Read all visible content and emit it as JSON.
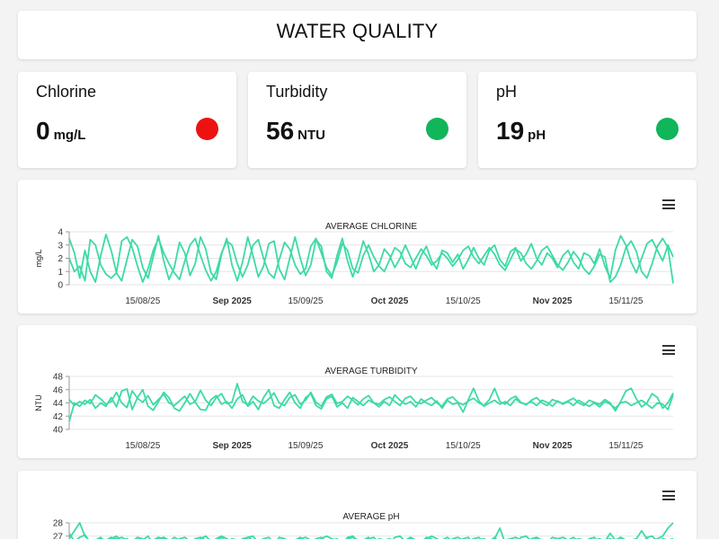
{
  "page": {
    "title": "WATER QUALITY"
  },
  "metrics": [
    {
      "name": "Chlorine",
      "value": "0",
      "unit": "mg/L",
      "status_color": "#ee1111"
    },
    {
      "name": "Turbidity",
      "value": "56",
      "unit": "NTU",
      "status_color": "#11b55a"
    },
    {
      "name": "pH",
      "value": "19",
      "unit": "pH",
      "status_color": "#11b55a"
    }
  ],
  "menu_icon": "hamburger-menu-icon",
  "line_color": "#3ddaa6",
  "chart_data": [
    {
      "type": "line",
      "title": "AVERAGE CHLORINE",
      "ylabel": "mg/L",
      "ylim": [
        0,
        4
      ],
      "yticks": [
        0,
        1,
        2,
        3,
        4
      ],
      "xticks": [
        "15/08/25",
        "Sep 2025",
        "15/09/25",
        "Oct 2025",
        "15/10/25",
        "Nov 2025",
        "15/11/25"
      ],
      "xticks_bold": [
        false,
        true,
        false,
        true,
        false,
        true,
        false
      ],
      "xlim_index": [
        0,
        115
      ],
      "xtick_index": [
        14,
        31,
        45,
        61,
        75,
        92,
        106
      ],
      "series": [
        {
          "values": [
            2.0,
            1.0,
            1.4,
            0.3,
            3.4,
            3.0,
            1.5,
            0.8,
            0.5,
            0.9,
            3.3,
            3.6,
            2.8,
            1.4,
            0.2,
            1.2,
            2.6,
            3.5,
            2.4,
            1.6,
            0.9,
            0.4,
            1.8,
            3.0,
            3.5,
            2.2,
            1.1,
            0.3,
            1.0,
            2.4,
            3.3,
            3.0,
            1.6,
            0.6,
            1.5,
            3.0,
            3.4,
            2.0,
            0.9,
            0.5,
            1.9,
            3.2,
            2.7,
            1.5,
            0.8,
            1.2,
            2.9,
            3.5,
            2.4,
            1.3,
            0.7,
            1.7,
            3.1,
            2.6,
            1.2,
            0.9,
            2.2,
            3.0,
            2.1,
            1.4,
            1.0,
            1.9,
            2.8,
            2.5,
            1.6,
            1.3,
            2.0,
            2.7,
            2.2,
            1.5,
            1.8,
            2.4,
            2.0,
            1.4,
            1.9,
            2.6,
            2.9,
            2.1,
            1.6,
            2.2,
            2.8,
            2.3,
            1.5,
            1.1,
            1.9,
            2.7,
            2.4,
            1.6,
            1.2,
            1.8,
            2.6,
            2.9,
            2.2,
            1.5,
            1.1,
            1.7,
            2.5,
            2.0,
            1.2,
            0.8,
            1.4,
            2.3,
            2.1,
            0.2,
            0.6,
            1.5,
            2.8,
            3.3,
            2.5,
            1.0,
            0.5,
            1.6,
            2.9,
            3.5,
            2.8,
            0.1
          ]
        },
        {
          "values": [
            3.5,
            2.4,
            0.5,
            2.6,
            1.0,
            0.2,
            2.2,
            3.8,
            2.6,
            0.9,
            0.3,
            1.9,
            3.4,
            2.9,
            1.3,
            0.5,
            2.1,
            3.7,
            1.8,
            0.4,
            1.3,
            3.2,
            2.4,
            0.7,
            1.6,
            3.6,
            2.7,
            0.9,
            0.4,
            2.3,
            3.5,
            1.5,
            0.3,
            1.7,
            3.6,
            2.2,
            0.6,
            1.4,
            3.1,
            3.3,
            1.2,
            0.4,
            2.0,
            3.6,
            2.0,
            0.7,
            1.5,
            3.4,
            2.9,
            1.0,
            0.5,
            2.2,
            3.5,
            1.8,
            0.6,
            1.8,
            3.3,
            2.3,
            1.0,
            1.5,
            2.7,
            2.2,
            1.3,
            2.0,
            3.0,
            2.1,
            1.2,
            2.2,
            2.9,
            1.8,
            1.2,
            2.6,
            2.4,
            1.7,
            2.3,
            1.2,
            1.9,
            2.8,
            2.0,
            1.5,
            2.6,
            3.0,
            1.9,
            1.4,
            2.5,
            2.8,
            1.8,
            2.3,
            3.1,
            2.0,
            1.5,
            2.4,
            2.0,
            1.3,
            2.2,
            2.6,
            1.7,
            1.2,
            2.4,
            2.2,
            1.6,
            2.7,
            1.4,
            0.5,
            2.6,
            3.7,
            3.0,
            1.7,
            0.9,
            2.0,
            3.1,
            3.4,
            2.6,
            1.8,
            3.0,
            2.1
          ]
        }
      ]
    },
    {
      "type": "line",
      "title": "AVERAGE TURBIDITY",
      "ylabel": "NTU",
      "ylim": [
        40,
        48
      ],
      "yticks": [
        40,
        42,
        44,
        46,
        48
      ],
      "xticks": [
        "15/08/25",
        "Sep 2025",
        "15/09/25",
        "Oct 2025",
        "15/10/25",
        "Nov 2025",
        "15/11/25"
      ],
      "xticks_bold": [
        false,
        true,
        false,
        true,
        false,
        true,
        false
      ],
      "xlim_index": [
        0,
        115
      ],
      "xtick_index": [
        14,
        31,
        45,
        61,
        75,
        92,
        106
      ],
      "series": [
        {
          "values": [
            41.2,
            44.0,
            43.5,
            44.4,
            43.9,
            45.2,
            44.6,
            43.8,
            44.2,
            45.6,
            44.0,
            43.3,
            45.8,
            44.7,
            44.1,
            45.1,
            43.7,
            44.5,
            45.3,
            44.0,
            43.6,
            44.3,
            45.0,
            43.8,
            44.2,
            45.9,
            44.4,
            43.6,
            44.8,
            45.4,
            43.9,
            44.1,
            46.9,
            44.2,
            43.7,
            45.0,
            44.3,
            43.9,
            44.6,
            45.5,
            44.0,
            43.6,
            44.8,
            45.2,
            43.8,
            44.4,
            45.6,
            44.1,
            43.5,
            44.9,
            45.3,
            43.9,
            44.2,
            45.0,
            44.4,
            43.7,
            44.6,
            45.1,
            44.0,
            43.8,
            44.5,
            44.9,
            44.2,
            43.6,
            44.7,
            45.0,
            44.1,
            43.9,
            44.4,
            44.8,
            44.0,
            43.5,
            44.6,
            44.9,
            44.1,
            43.7,
            44.3,
            44.7,
            44.0,
            43.6,
            44.5,
            46.2,
            44.2,
            43.8,
            44.6,
            45.0,
            44.1,
            43.7,
            44.4,
            44.8,
            44.0,
            43.6,
            44.5,
            44.2,
            43.9,
            44.3,
            44.7,
            44.0,
            43.6,
            44.4,
            44.1,
            43.8,
            44.5,
            44.0,
            42.8,
            44.2,
            45.8,
            46.2,
            44.6,
            43.4,
            44.0,
            45.4,
            44.8,
            43.2,
            44.0,
            45.5
          ]
        },
        {
          "values": [
            44.5,
            43.6,
            44.2,
            43.8,
            44.5,
            43.2,
            44.0,
            43.5,
            44.8,
            43.4,
            45.8,
            46.1,
            43.0,
            44.8,
            46.0,
            43.5,
            42.9,
            44.2,
            45.6,
            44.8,
            43.2,
            42.8,
            44.0,
            45.4,
            44.1,
            43.0,
            42.9,
            44.5,
            45.1,
            43.8,
            44.2,
            43.2,
            44.6,
            45.2,
            43.5,
            44.2,
            43.0,
            44.8,
            46.0,
            43.6,
            43.2,
            44.5,
            45.6,
            44.0,
            43.2,
            44.8,
            45.4,
            43.6,
            43.1,
            44.6,
            45.0,
            43.4,
            44.0,
            43.2,
            44.8,
            44.2,
            43.6,
            44.4,
            44.0,
            43.4,
            44.2,
            43.6,
            45.2,
            44.4,
            43.8,
            44.2,
            43.4,
            44.6,
            44.0,
            43.6,
            44.3,
            43.2,
            44.4,
            43.8,
            44.0,
            42.6,
            44.5,
            46.2,
            44.3,
            43.5,
            44.0,
            44.4,
            43.8,
            44.2,
            43.6,
            44.6,
            44.0,
            43.8,
            44.2,
            43.6,
            44.4,
            44.1,
            43.5,
            44.3,
            43.8,
            44.2,
            43.6,
            44.4,
            43.9,
            43.5,
            44.0,
            43.4,
            44.2,
            43.8,
            43.2,
            44.0,
            44.2,
            43.6,
            44.0,
            44.4,
            43.8,
            43.2,
            44.0,
            43.8,
            43.0,
            45.2
          ]
        }
      ]
    },
    {
      "type": "line",
      "title": "AVERAGE pH",
      "ylabel": "",
      "ylim": [
        24,
        28
      ],
      "yticks": [
        27,
        28
      ],
      "xticks": [],
      "xticks_bold": [],
      "xlim_index": [
        0,
        115
      ],
      "xtick_index": [],
      "series": [
        {
          "values": [
            26.8,
            27.4,
            28.0,
            27.0,
            26.6,
            26.4,
            26.8,
            26.7,
            26.9,
            26.8,
            26.9,
            26.7,
            26.6,
            26.9,
            26.8,
            26.5,
            26.7,
            26.9,
            26.8,
            26.6,
            26.9,
            26.7,
            26.6,
            26.5,
            26.8,
            26.9,
            26.7,
            26.5,
            26.8,
            27.0,
            26.8,
            26.6,
            26.5,
            26.8,
            26.9,
            26.7,
            26.6,
            26.8,
            26.9,
            26.5,
            26.7,
            26.8,
            26.6,
            26.5,
            26.8,
            26.9,
            26.7,
            26.4,
            26.8,
            27.0,
            26.8,
            26.6,
            26.5,
            26.8,
            26.9,
            26.7,
            26.6,
            26.8,
            26.9,
            26.5,
            26.7,
            26.8,
            26.6,
            26.5,
            26.7,
            26.9,
            26.7,
            26.4,
            26.8,
            27.0,
            26.8,
            26.6,
            26.5,
            26.8,
            26.9,
            26.7,
            26.6,
            26.8,
            26.9,
            26.5,
            26.7,
            26.8,
            27.6,
            26.5,
            26.8,
            26.9,
            26.7,
            26.4,
            26.8,
            26.9,
            26.7,
            26.6,
            26.5,
            26.8,
            26.9,
            26.7,
            26.6,
            26.8,
            26.7,
            26.5,
            26.7,
            26.8,
            26.6,
            27.2,
            26.7,
            26.9,
            26.7,
            26.4,
            26.8,
            27.4,
            26.8,
            26.6,
            26.8,
            27.0,
            27.6,
            28.0
          ]
        },
        {
          "values": [
            27.2,
            26.6,
            26.9,
            27.1,
            26.5,
            26.7,
            26.9,
            26.4,
            26.8,
            27.0,
            26.6,
            26.8,
            26.5,
            26.9,
            26.7,
            27.0,
            26.4,
            26.8,
            26.9,
            26.7,
            26.5,
            26.8,
            26.9,
            26.6,
            26.4,
            26.8,
            27.0,
            26.6,
            26.7,
            26.9,
            26.5,
            26.8,
            26.7,
            26.4,
            26.9,
            27.0,
            26.5,
            26.8,
            26.6,
            26.4,
            26.9,
            26.8,
            26.5,
            26.7,
            26.9,
            26.6,
            26.4,
            26.8,
            26.9,
            26.5,
            26.7,
            26.8,
            26.4,
            26.9,
            27.0,
            26.6,
            26.7,
            26.9,
            26.5,
            26.8,
            26.7,
            26.4,
            26.9,
            27.0,
            26.6,
            26.8,
            26.7,
            26.5,
            26.9,
            26.8,
            26.4,
            26.7,
            26.9,
            26.6,
            26.5,
            26.8,
            26.9,
            26.4,
            26.7,
            26.8,
            26.6,
            26.9,
            26.5,
            26.7,
            26.8,
            26.4,
            26.9,
            27.0,
            26.6,
            26.8,
            26.7,
            26.5,
            26.9,
            26.8,
            26.4,
            26.7,
            26.9,
            26.6,
            26.5,
            26.8,
            26.9,
            26.4,
            26.7,
            26.8,
            26.6,
            26.9,
            26.5,
            26.7,
            26.8,
            26.4,
            26.9,
            27.0,
            26.6,
            26.8,
            26.7,
            26.8
          ]
        }
      ]
    }
  ]
}
